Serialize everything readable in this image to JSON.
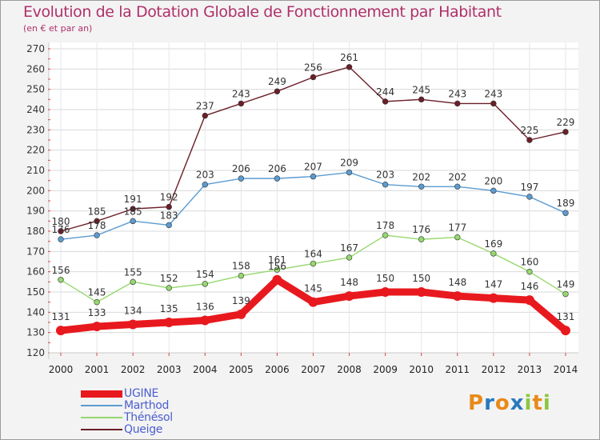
{
  "chart_data": {
    "type": "line",
    "title": "Evolution de la Dotation Globale de Fonctionnement par Habitant",
    "subtitle": "(en € et par an)",
    "categories": [
      "2000",
      "2001",
      "2002",
      "2003",
      "2004",
      "2005",
      "2006",
      "2007",
      "2008",
      "2009",
      "2010",
      "2011",
      "2012",
      "2013",
      "2014"
    ],
    "yticks": [
      120,
      130,
      140,
      150,
      160,
      170,
      180,
      190,
      200,
      210,
      220,
      230,
      240,
      250,
      260,
      270
    ],
    "ylim": [
      120,
      270
    ],
    "grid": true,
    "legend_position": "bottom-left",
    "series": [
      {
        "name": "Queige",
        "color": "#6b1f28",
        "values": [
          180,
          185,
          191,
          192,
          237,
          243,
          249,
          256,
          261,
          244,
          245,
          243,
          243,
          225,
          229
        ]
      },
      {
        "name": "Marthod",
        "color": "#5b9bd0",
        "values": [
          176,
          178,
          185,
          183,
          203,
          206,
          206,
          207,
          209,
          203,
          202,
          202,
          200,
          197,
          189
        ]
      },
      {
        "name": "Thénésol",
        "color": "#96d86e",
        "values": [
          156,
          145,
          155,
          152,
          154,
          158,
          161,
          164,
          167,
          178,
          176,
          177,
          169,
          160,
          149
        ]
      },
      {
        "name": "UGINE",
        "color": "#e8191e",
        "values": [
          131,
          133,
          134,
          135,
          136,
          139,
          156,
          145,
          148,
          150,
          150,
          148,
          147,
          146,
          131
        ]
      }
    ],
    "legend": [
      "UGINE",
      "Marthod",
      "Thénésol",
      "Queige"
    ]
  },
  "logo": {
    "letters": [
      "P",
      "r",
      "o",
      "x",
      "i",
      "t",
      "i"
    ],
    "colors": [
      "#e88a1a",
      "#2a78c0",
      "#e88a1a",
      "#2a78c0",
      "#8cc63f",
      "#e88a1a",
      "#8cc63f"
    ]
  }
}
